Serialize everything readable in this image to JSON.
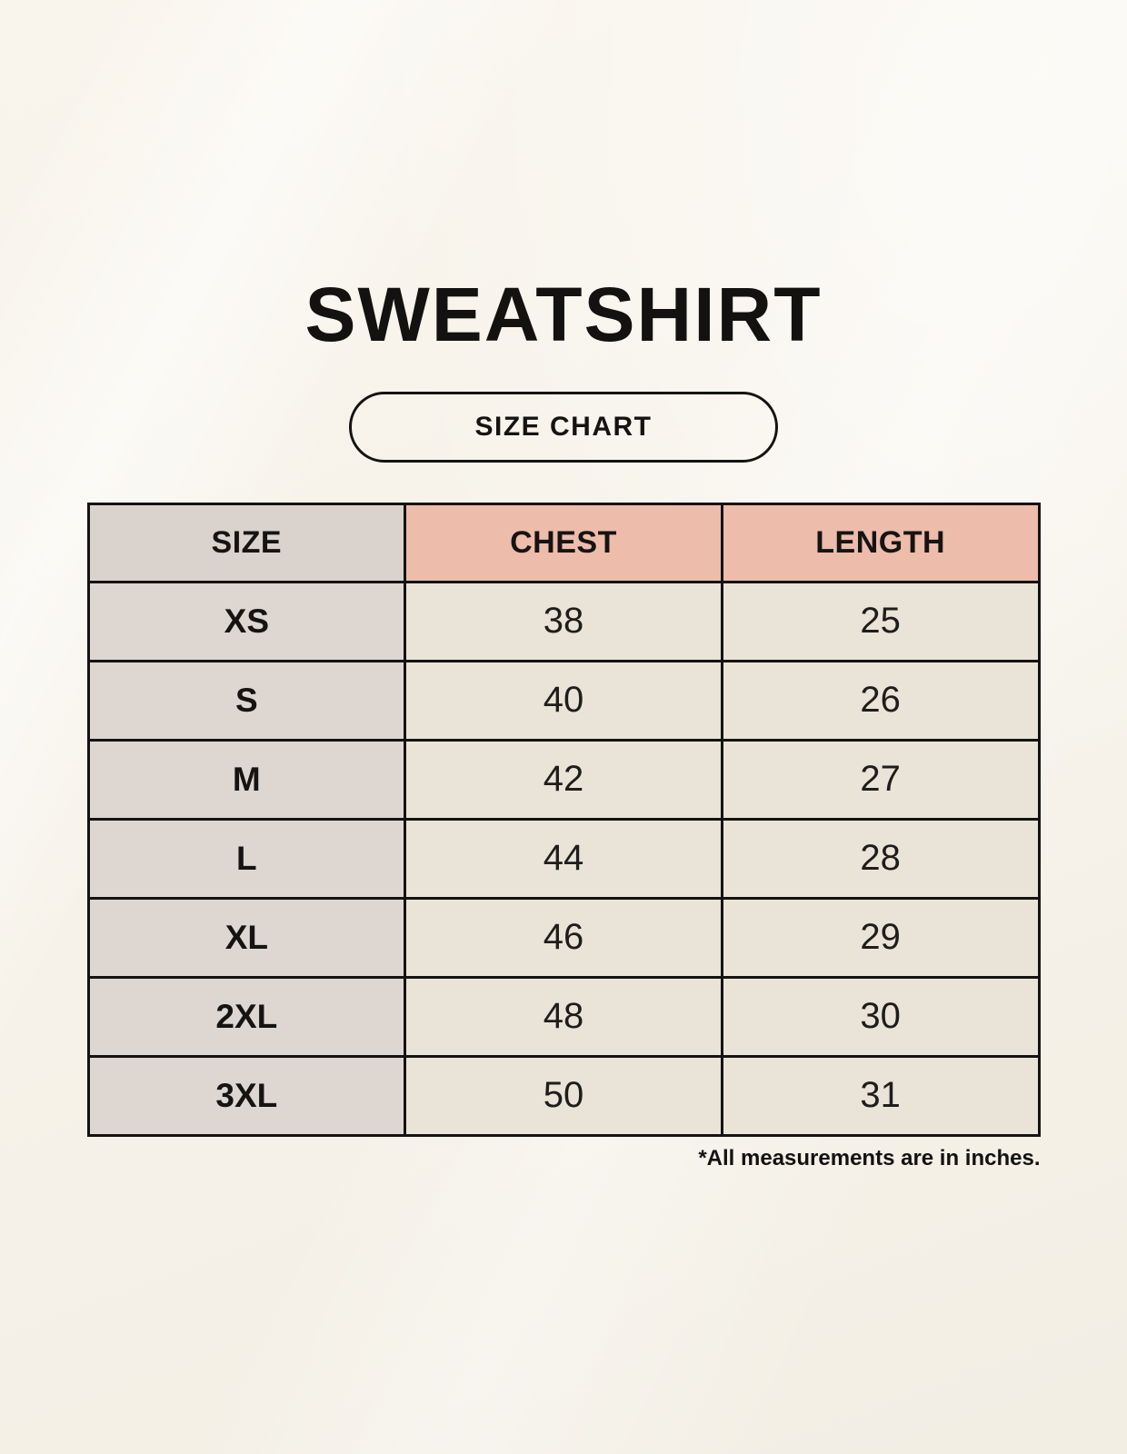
{
  "page": {
    "title": "SWEATSHIRT",
    "size_chart_label": "SIZE CHART",
    "footnote": "*All measurements are in inches."
  },
  "chart_data": {
    "type": "table",
    "title": "SWEATSHIRT",
    "subtitle": "SIZE CHART",
    "columns": [
      "SIZE",
      "CHEST",
      "LENGTH"
    ],
    "rows": [
      [
        "XS",
        "38",
        "25"
      ],
      [
        "S",
        "40",
        "26"
      ],
      [
        "M",
        "42",
        "27"
      ],
      [
        "L",
        "44",
        "28"
      ],
      [
        "XL",
        "46",
        "29"
      ],
      [
        "2XL",
        "48",
        "30"
      ],
      [
        "3XL",
        "50",
        "31"
      ]
    ],
    "note": "*All measurements are in inches.",
    "units": "inches",
    "legend_position": "none",
    "grid": "full-borders"
  },
  "colors": {
    "background": "#f7f3ea",
    "size_column_header": "#d9d2cd",
    "measure_column_header": "#edbcab",
    "size_column_cells": "#ddd6d1",
    "value_cells": "#eae3d7",
    "border": "#141312",
    "text": "#161412"
  }
}
